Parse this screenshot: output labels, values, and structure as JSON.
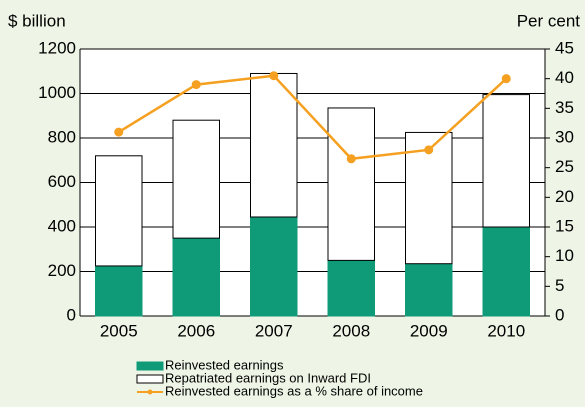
{
  "chart_data": {
    "type": "stacked_bar_line",
    "y_label": "$ billion",
    "y2_label": "Per cent",
    "categories": [
      "2005",
      "2006",
      "2007",
      "2008",
      "2009",
      "2010"
    ],
    "series": [
      {
        "name": "Reinvested earnings",
        "color": "#0f9a78",
        "values": [
          225,
          350,
          445,
          250,
          235,
          400
        ]
      },
      {
        "name": "Repatriated earnings on Inward FDI",
        "color": "#ffffff",
        "values": [
          495,
          530,
          645,
          685,
          590,
          595
        ]
      },
      {
        "name": "Reinvested earnings as a % share of income",
        "color": "#f5a020",
        "axis": "y2",
        "values": [
          31,
          39,
          40.5,
          26.5,
          28,
          40
        ]
      }
    ],
    "ylim": [
      0,
      1200
    ],
    "yticks": [
      0,
      200,
      400,
      600,
      800,
      1000,
      1200
    ],
    "y2lim": [
      0,
      45
    ],
    "y2ticks": [
      0,
      5,
      10,
      15,
      20,
      25,
      30,
      35,
      40,
      45
    ],
    "grid": true
  }
}
